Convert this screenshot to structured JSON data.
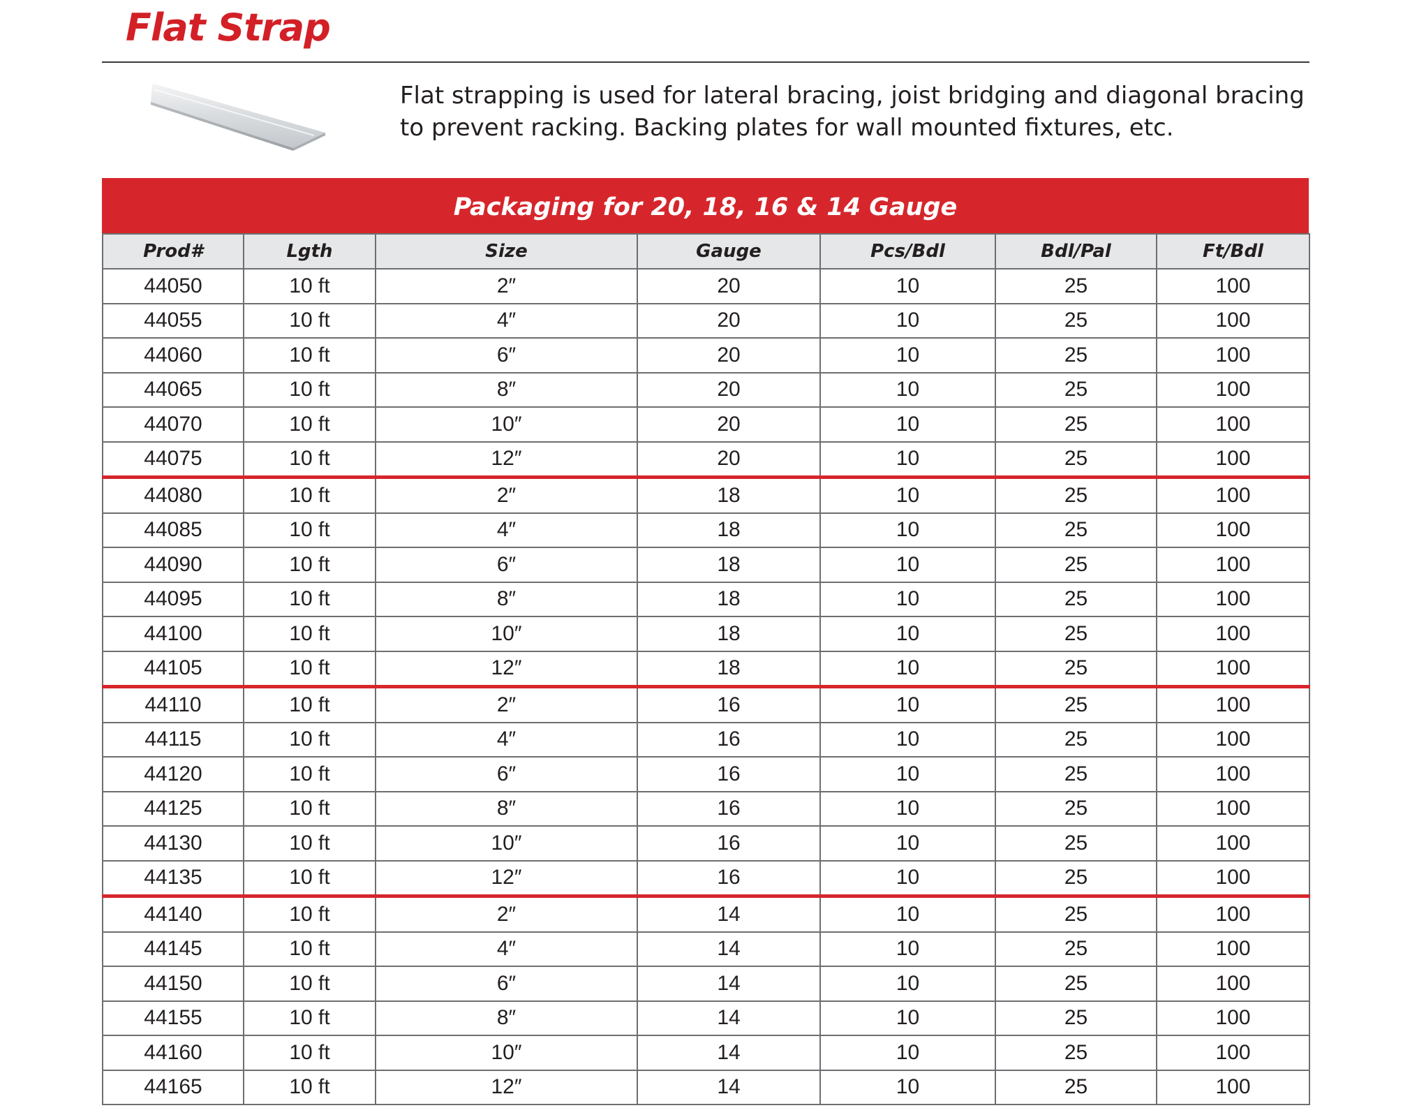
{
  "title": "Flat Strap",
  "description": "Flat strapping is used for lateral bracing, joist bridging and diagonal bracing to prevent racking. Backing plates for wall mounted fixtures, etc.",
  "colors": {
    "accent_red": "#d6262c",
    "title_red": "#d32027",
    "header_bg": "#e6e7e8",
    "grid": "#6d6e71"
  },
  "table": {
    "banner": "Packaging for 20, 18, 16 & 14 Gauge",
    "columns": [
      "Prod#",
      "Lgth",
      "Size",
      "Gauge",
      "Pcs/Bdl",
      "Bdl/Pal",
      "Ft/Bdl"
    ],
    "rows": [
      [
        "44050",
        "10 ft",
        "2″",
        "20",
        "10",
        "25",
        "100"
      ],
      [
        "44055",
        "10 ft",
        "4″",
        "20",
        "10",
        "25",
        "100"
      ],
      [
        "44060",
        "10 ft",
        "6″",
        "20",
        "10",
        "25",
        "100"
      ],
      [
        "44065",
        "10 ft",
        "8″",
        "20",
        "10",
        "25",
        "100"
      ],
      [
        "44070",
        "10 ft",
        "10″",
        "20",
        "10",
        "25",
        "100"
      ],
      [
        "44075",
        "10 ft",
        "12″",
        "20",
        "10",
        "25",
        "100"
      ],
      [
        "44080",
        "10 ft",
        "2″",
        "18",
        "10",
        "25",
        "100"
      ],
      [
        "44085",
        "10 ft",
        "4″",
        "18",
        "10",
        "25",
        "100"
      ],
      [
        "44090",
        "10 ft",
        "6″",
        "18",
        "10",
        "25",
        "100"
      ],
      [
        "44095",
        "10 ft",
        "8″",
        "18",
        "10",
        "25",
        "100"
      ],
      [
        "44100",
        "10 ft",
        "10″",
        "18",
        "10",
        "25",
        "100"
      ],
      [
        "44105",
        "10 ft",
        "12″",
        "18",
        "10",
        "25",
        "100"
      ],
      [
        "44110",
        "10 ft",
        "2″",
        "16",
        "10",
        "25",
        "100"
      ],
      [
        "44115",
        "10 ft",
        "4″",
        "16",
        "10",
        "25",
        "100"
      ],
      [
        "44120",
        "10 ft",
        "6″",
        "16",
        "10",
        "25",
        "100"
      ],
      [
        "44125",
        "10 ft",
        "8″",
        "16",
        "10",
        "25",
        "100"
      ],
      [
        "44130",
        "10 ft",
        "10″",
        "16",
        "10",
        "25",
        "100"
      ],
      [
        "44135",
        "10 ft",
        "12″",
        "16",
        "10",
        "25",
        "100"
      ],
      [
        "44140",
        "10 ft",
        "2″",
        "14",
        "10",
        "25",
        "100"
      ],
      [
        "44145",
        "10 ft",
        "4″",
        "14",
        "10",
        "25",
        "100"
      ],
      [
        "44150",
        "10 ft",
        "6″",
        "14",
        "10",
        "25",
        "100"
      ],
      [
        "44155",
        "10 ft",
        "8″",
        "14",
        "10",
        "25",
        "100"
      ],
      [
        "44160",
        "10 ft",
        "10″",
        "14",
        "10",
        "25",
        "100"
      ],
      [
        "44165",
        "10 ft",
        "12″",
        "14",
        "10",
        "25",
        "100"
      ]
    ]
  }
}
